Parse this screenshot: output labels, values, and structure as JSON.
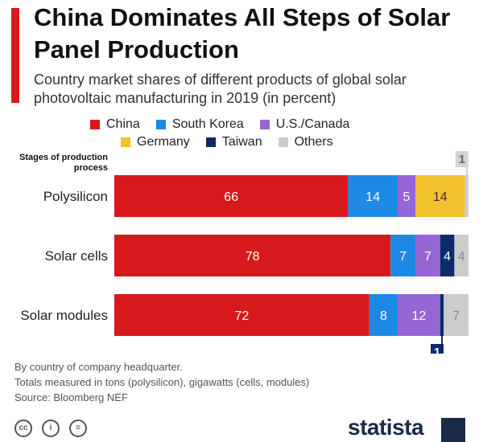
{
  "title": "China Dominates All Steps of Solar Panel Production",
  "subtitle": "Country market shares of different products of global solar photovoltaic manufacturing in 2019 (in percent)",
  "stage_header": "Stages of production process",
  "notes": [
    "By country of company headquarter.",
    "Totals measured in tons (polysilicon), gigawatts (cells, modules)",
    "Source: Bloomberg NEF"
  ],
  "brand": "statista",
  "icons": [
    "cc-icon",
    "by-icon",
    "equals-icon",
    "statista-logo-icon"
  ],
  "chart_data": {
    "type": "bar",
    "orientation": "horizontal",
    "stacked": true,
    "title": "China Dominates All Steps of Solar Panel Production",
    "subtitle": "Country market shares of different products of global solar photovoltaic manufacturing in 2019 (in percent)",
    "categories": [
      "Polysilicon",
      "Solar cells",
      "Solar modules"
    ],
    "series": [
      {
        "name": "China",
        "color": "#d7191c",
        "values": [
          66,
          78,
          72
        ]
      },
      {
        "name": "South Korea",
        "color": "#1e88e5",
        "values": [
          14,
          7,
          8
        ]
      },
      {
        "name": "U.S./Canada",
        "color": "#9467d4",
        "values": [
          5,
          7,
          12
        ]
      },
      {
        "name": "Germany",
        "color": "#f2c12e",
        "values": [
          14,
          0,
          0
        ]
      },
      {
        "name": "Taiwan",
        "color": "#0d2a6b",
        "values": [
          0,
          4,
          1
        ]
      },
      {
        "name": "Others",
        "color": "#cccccc",
        "values": [
          1,
          4,
          7
        ]
      }
    ],
    "data_labels": [
      [
        "66",
        "14",
        "5",
        "14",
        "",
        "1"
      ],
      [
        "78",
        "7",
        "7",
        "",
        "4",
        "4"
      ],
      [
        "72",
        "8",
        "12",
        "",
        "1",
        "7"
      ]
    ],
    "label_text_colors": [
      [
        "#ffffff",
        "#ffffff",
        "#ffffff",
        "#333333",
        "#ffffff",
        "#888888"
      ],
      [
        "#ffffff",
        "#ffffff",
        "#ffffff",
        "#333333",
        "#ffffff",
        "#888888"
      ],
      [
        "#ffffff",
        "#ffffff",
        "#ffffff",
        "#333333",
        "#ffffff",
        "#888888"
      ]
    ],
    "callouts": [
      {
        "category": "Polysilicon",
        "series": "Others",
        "label": "1",
        "position": "above"
      },
      {
        "category": "Solar modules",
        "series": "Taiwan",
        "label": "1",
        "position": "below"
      }
    ],
    "xlim": [
      0,
      100
    ],
    "legend": "top",
    "grid": false
  }
}
